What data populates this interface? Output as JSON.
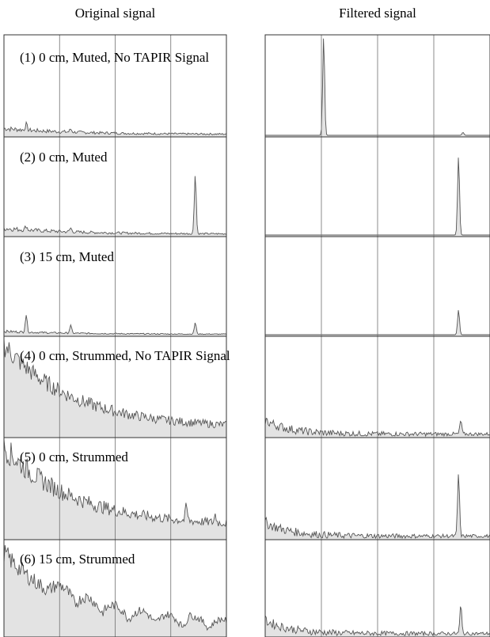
{
  "columns": {
    "left": "Original signal",
    "right": "Filtered signal"
  },
  "chart_data": {
    "type": "area",
    "grid": true,
    "rows": [
      {
        "label": "(1) 0 cm, Muted, No TAPIR Signal",
        "original": {
          "floor": 0.01,
          "decay": 0.06,
          "noise": 0.02,
          "peaks": [
            [
              0.1,
              0.06
            ],
            [
              0.3,
              0.03
            ]
          ],
          "arches": false
        },
        "filtered": {
          "floor": 0.0,
          "decay": 0.0,
          "noise": 0.0,
          "peaks": [
            [
              0.26,
              1.0
            ],
            [
              0.88,
              0.03
            ]
          ],
          "arches": false
        }
      },
      {
        "label": "(2) 0 cm, Muted",
        "original": {
          "floor": 0.01,
          "decay": 0.06,
          "noise": 0.02,
          "peaks": [
            [
              0.1,
              0.04
            ],
            [
              0.3,
              0.04
            ],
            [
              0.86,
              0.62
            ]
          ],
          "arches": false
        },
        "filtered": {
          "floor": 0.0,
          "decay": 0.0,
          "noise": 0.0,
          "peaks": [
            [
              0.86,
              0.82
            ]
          ],
          "arches": false
        }
      },
      {
        "label": "(3) 15 cm, Muted",
        "original": {
          "floor": 0.005,
          "decay": 0.03,
          "noise": 0.01,
          "peaks": [
            [
              0.1,
              0.18
            ],
            [
              0.3,
              0.08
            ],
            [
              0.86,
              0.12
            ]
          ],
          "arches": false
        },
        "filtered": {
          "floor": 0.0,
          "decay": 0.0,
          "noise": 0.0,
          "peaks": [
            [
              0.86,
              0.26
            ]
          ],
          "arches": false
        }
      },
      {
        "label": "(4) 0 cm, Strummed, No TAPIR Signal",
        "original": {
          "floor": 0.08,
          "decay": 0.85,
          "noise": 0.09,
          "peaks": [],
          "arches": false
        },
        "filtered": {
          "floor": 0.02,
          "decay": 0.14,
          "noise": 0.04,
          "peaks": [
            [
              0.87,
              0.14
            ]
          ],
          "arches": false
        }
      },
      {
        "label": "(5) 0 cm, Strummed",
        "original": {
          "floor": 0.12,
          "decay": 0.8,
          "noise": 0.1,
          "peaks": [
            [
              0.82,
              0.15
            ],
            [
              0.95,
              0.08
            ]
          ],
          "arches": false
        },
        "filtered": {
          "floor": 0.02,
          "decay": 0.14,
          "noise": 0.04,
          "peaks": [
            [
              0.86,
              0.64
            ]
          ],
          "arches": false
        }
      },
      {
        "label": "(6) 15 cm, Strummed",
        "original": {
          "floor": 0.03,
          "decay": 0.85,
          "noise": 0.08,
          "peaks": [
            [
              0.84,
              0.08
            ]
          ],
          "arches": true
        },
        "filtered": {
          "floor": 0.02,
          "decay": 0.14,
          "noise": 0.04,
          "peaks": [
            [
              0.87,
              0.3
            ]
          ],
          "arches": false
        }
      }
    ]
  },
  "colors": {
    "line": "#555555",
    "fill": "#e3e3e3",
    "grid": "#6f6f6f",
    "border": "#333333"
  }
}
